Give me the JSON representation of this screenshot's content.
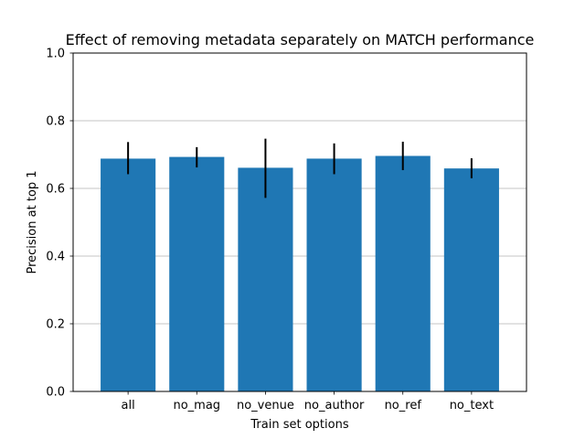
{
  "chart_data": {
    "type": "bar",
    "title": "Effect of removing metadata separately on MATCH performance",
    "xlabel": "Train set options",
    "ylabel": "Precision at top 1",
    "categories": [
      "all",
      "no_mag",
      "no_venue",
      "no_author",
      "no_ref",
      "no_text"
    ],
    "values": [
      0.688,
      0.693,
      0.661,
      0.688,
      0.696,
      0.659
    ],
    "error_low": [
      0.642,
      0.662,
      0.572,
      0.642,
      0.654,
      0.63
    ],
    "error_high": [
      0.737,
      0.722,
      0.747,
      0.733,
      0.738,
      0.689
    ],
    "ylim": [
      0.0,
      1.0
    ],
    "yticks": [
      "0.0",
      "0.2",
      "0.4",
      "0.6",
      "0.8",
      "1.0"
    ],
    "grid": "y",
    "colors": {
      "bar": "#1f77b4",
      "error": "#000000",
      "grid": "#b0b0b0",
      "axis": "#000000"
    }
  }
}
